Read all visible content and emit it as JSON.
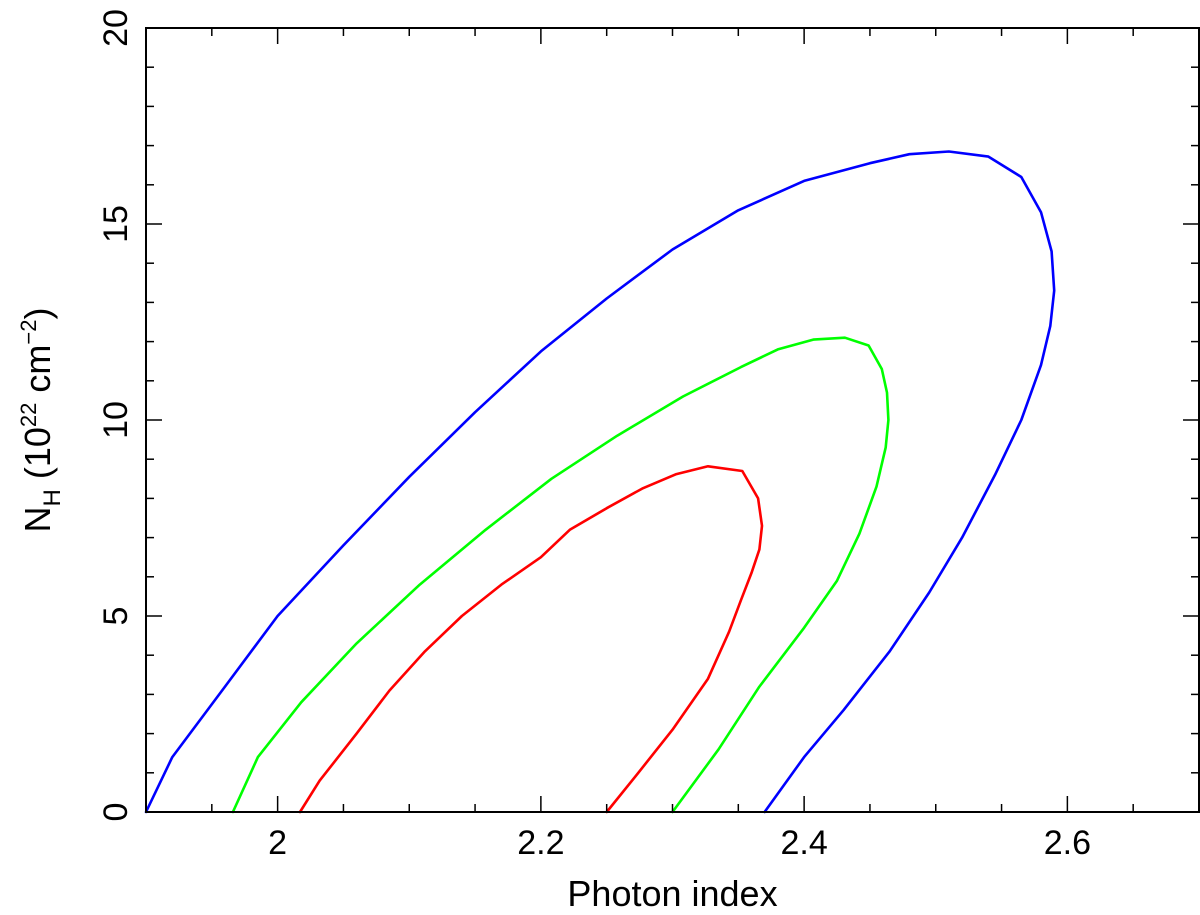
{
  "chart_data": {
    "type": "line",
    "title": "",
    "xlabel": "Photon index",
    "ylabel": {
      "main": "N",
      "subscript": "H",
      "unit_prefix": " (10",
      "unit_exponent": "22",
      "unit_mid": " cm",
      "unit_exponent2": "−2",
      "unit_suffix": ")"
    },
    "xlim": [
      1.9,
      2.7
    ],
    "ylim": [
      0,
      20
    ],
    "x_ticks": [
      {
        "value": 2.0,
        "label": "2"
      },
      {
        "value": 2.2,
        "label": "2.2"
      },
      {
        "value": 2.4,
        "label": "2.4"
      },
      {
        "value": 2.6,
        "label": "2.6"
      }
    ],
    "x_minor_step": 0.05,
    "y_ticks": [
      {
        "value": 0,
        "label": "0"
      },
      {
        "value": 5,
        "label": "5"
      },
      {
        "value": 10,
        "label": "10"
      },
      {
        "value": 15,
        "label": "15"
      },
      {
        "value": 20,
        "label": "20"
      }
    ],
    "y_minor_step": 1,
    "grid": false,
    "series": [
      {
        "color": "#ff0000",
        "points": [
          [
            2.017,
            0.0
          ],
          [
            2.032,
            0.8
          ],
          [
            2.06,
            2.0
          ],
          [
            2.085,
            3.1
          ],
          [
            2.112,
            4.1
          ],
          [
            2.14,
            5.0
          ],
          [
            2.17,
            5.8
          ],
          [
            2.2,
            6.5
          ],
          [
            2.222,
            7.2
          ],
          [
            2.25,
            7.75
          ],
          [
            2.277,
            8.25
          ],
          [
            2.303,
            8.62
          ],
          [
            2.327,
            8.82
          ],
          [
            2.353,
            8.7
          ],
          [
            2.365,
            8.0
          ],
          [
            2.368,
            7.3
          ],
          [
            2.366,
            6.7
          ],
          [
            2.36,
            6.1
          ],
          [
            2.352,
            5.4
          ],
          [
            2.343,
            4.6
          ],
          [
            2.327,
            3.4
          ],
          [
            2.3,
            2.1
          ],
          [
            2.274,
            1.0
          ],
          [
            2.25,
            0.0
          ]
        ]
      },
      {
        "color": "#00ff00",
        "points": [
          [
            1.966,
            0.0
          ],
          [
            1.985,
            1.4
          ],
          [
            2.018,
            2.8
          ],
          [
            2.06,
            4.3
          ],
          [
            2.108,
            5.8
          ],
          [
            2.158,
            7.2
          ],
          [
            2.208,
            8.5
          ],
          [
            2.258,
            9.6
          ],
          [
            2.308,
            10.6
          ],
          [
            2.352,
            11.35
          ],
          [
            2.38,
            11.8
          ],
          [
            2.407,
            12.05
          ],
          [
            2.431,
            12.1
          ],
          [
            2.449,
            11.9
          ],
          [
            2.459,
            11.3
          ],
          [
            2.463,
            10.7
          ],
          [
            2.464,
            10.0
          ],
          [
            2.462,
            9.3
          ],
          [
            2.455,
            8.3
          ],
          [
            2.442,
            7.1
          ],
          [
            2.425,
            5.9
          ],
          [
            2.4,
            4.7
          ],
          [
            2.366,
            3.2
          ],
          [
            2.335,
            1.6
          ],
          [
            2.3,
            0.0
          ]
        ]
      },
      {
        "color": "#0000ff",
        "points": [
          [
            1.9,
            0.0
          ],
          [
            1.92,
            1.4
          ],
          [
            1.96,
            3.2
          ],
          [
            2.0,
            5.0
          ],
          [
            2.05,
            6.8
          ],
          [
            2.1,
            8.55
          ],
          [
            2.15,
            10.2
          ],
          [
            2.2,
            11.75
          ],
          [
            2.25,
            13.1
          ],
          [
            2.3,
            14.35
          ],
          [
            2.35,
            15.35
          ],
          [
            2.4,
            16.1
          ],
          [
            2.45,
            16.55
          ],
          [
            2.48,
            16.78
          ],
          [
            2.51,
            16.85
          ],
          [
            2.54,
            16.72
          ],
          [
            2.565,
            16.2
          ],
          [
            2.58,
            15.3
          ],
          [
            2.588,
            14.3
          ],
          [
            2.59,
            13.3
          ],
          [
            2.587,
            12.4
          ],
          [
            2.58,
            11.4
          ],
          [
            2.565,
            10.0
          ],
          [
            2.545,
            8.6
          ],
          [
            2.52,
            7.0
          ],
          [
            2.495,
            5.6
          ],
          [
            2.465,
            4.1
          ],
          [
            2.43,
            2.6
          ],
          [
            2.4,
            1.4
          ],
          [
            2.37,
            0.0
          ]
        ]
      }
    ]
  }
}
